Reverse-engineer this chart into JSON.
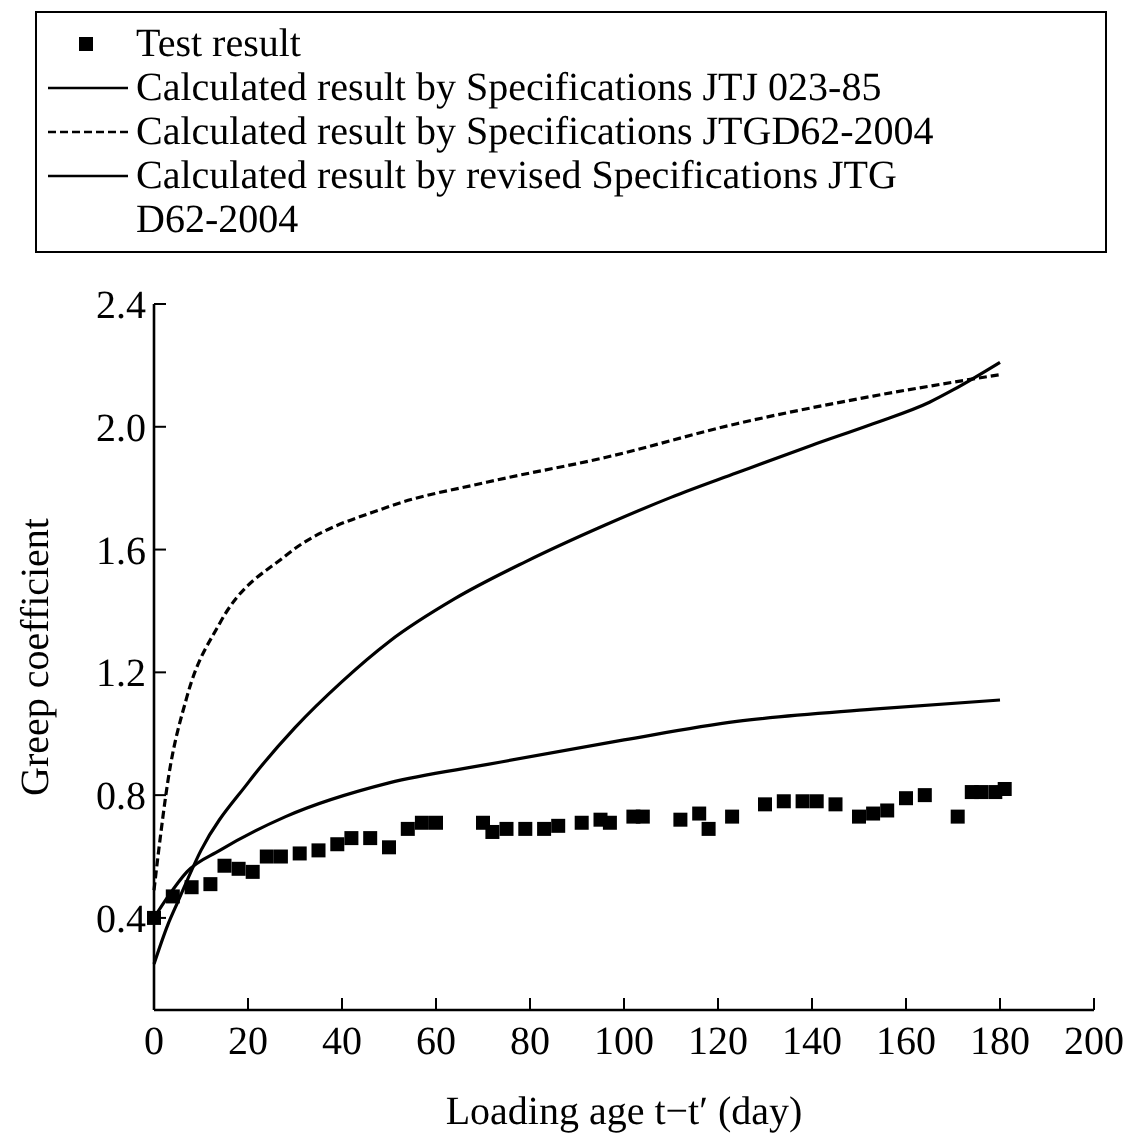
{
  "chart_data": {
    "type": "line",
    "xlabel": "Loading age t−t′ (day)",
    "ylabel": "Greep coefficient",
    "xlim": [
      0,
      200
    ],
    "xticks": [
      0,
      20,
      40,
      60,
      80,
      100,
      120,
      140,
      160,
      180,
      200
    ],
    "ylim": [
      0.1,
      2.4
    ],
    "yticks": [
      0.4,
      0.8,
      1.2,
      1.6,
      {
        "value": 2,
        "label": "2.0"
      },
      2.4
    ],
    "grid": false,
    "legend": "top",
    "series": [
      {
        "name": "Test result",
        "type": "scatter",
        "marker": "square",
        "color": "#000000",
        "x": [
          0,
          4,
          8,
          12,
          15,
          18,
          21,
          24,
          27,
          31,
          35,
          39,
          42,
          46,
          50,
          54,
          57,
          60,
          70,
          72,
          75,
          79,
          83,
          86,
          91,
          95,
          97,
          102,
          104,
          112,
          116,
          118,
          123,
          130,
          134,
          138,
          141,
          145,
          150,
          153,
          156,
          160,
          164,
          171,
          174,
          176,
          179,
          181
        ],
        "values": [
          0.4,
          0.47,
          0.5,
          0.51,
          0.57,
          0.56,
          0.55,
          0.6,
          0.6,
          0.61,
          0.62,
          0.64,
          0.66,
          0.66,
          0.63,
          0.69,
          0.71,
          0.71,
          0.71,
          0.68,
          0.69,
          0.69,
          0.69,
          0.7,
          0.71,
          0.72,
          0.71,
          0.73,
          0.73,
          0.72,
          0.74,
          0.69,
          0.73,
          0.77,
          0.78,
          0.78,
          0.78,
          0.77,
          0.73,
          0.74,
          0.75,
          0.79,
          0.8,
          0.73,
          0.81,
          0.81,
          0.81,
          0.82
        ]
      },
      {
        "name": "Calculated result by Specifications JTJ 023-85",
        "line_style": "solid",
        "marker": "none",
        "color": "#000000",
        "x": [
          0,
          3,
          5,
          10,
          20,
          30,
          40,
          50,
          64,
          79,
          96,
          110,
          124,
          140,
          153,
          165,
          170,
          180
        ],
        "values": [
          0.25,
          0.38,
          0.45,
          0.62,
          0.84,
          1.02,
          1.17,
          1.3,
          1.44,
          1.56,
          1.68,
          1.77,
          1.85,
          1.94,
          2.01,
          2.08,
          2.12,
          2.21
        ]
      },
      {
        "name": "Calculated result by Specifications JTGD62-2004",
        "line_style": "dashed",
        "marker": "none",
        "color": "#000000",
        "x": [
          0,
          1,
          3,
          7,
          14,
          28,
          50,
          71,
          96,
          124,
          153,
          180
        ],
        "values": [
          0.49,
          0.62,
          0.85,
          1.12,
          1.36,
          1.58,
          1.74,
          1.82,
          1.9,
          2.01,
          2.1,
          2.17
        ]
      },
      {
        "name": "Calculated result by revised Specifications JTG D62-2004",
        "line_style": "solid",
        "marker": "none",
        "color": "#000000",
        "x": [
          0,
          3,
          7,
          14,
          28,
          50,
          71,
          100,
          124,
          153,
          180
        ],
        "values": [
          0.4,
          0.47,
          0.55,
          0.62,
          0.73,
          0.84,
          0.9,
          0.98,
          1.04,
          1.08,
          1.11
        ]
      }
    ]
  }
}
